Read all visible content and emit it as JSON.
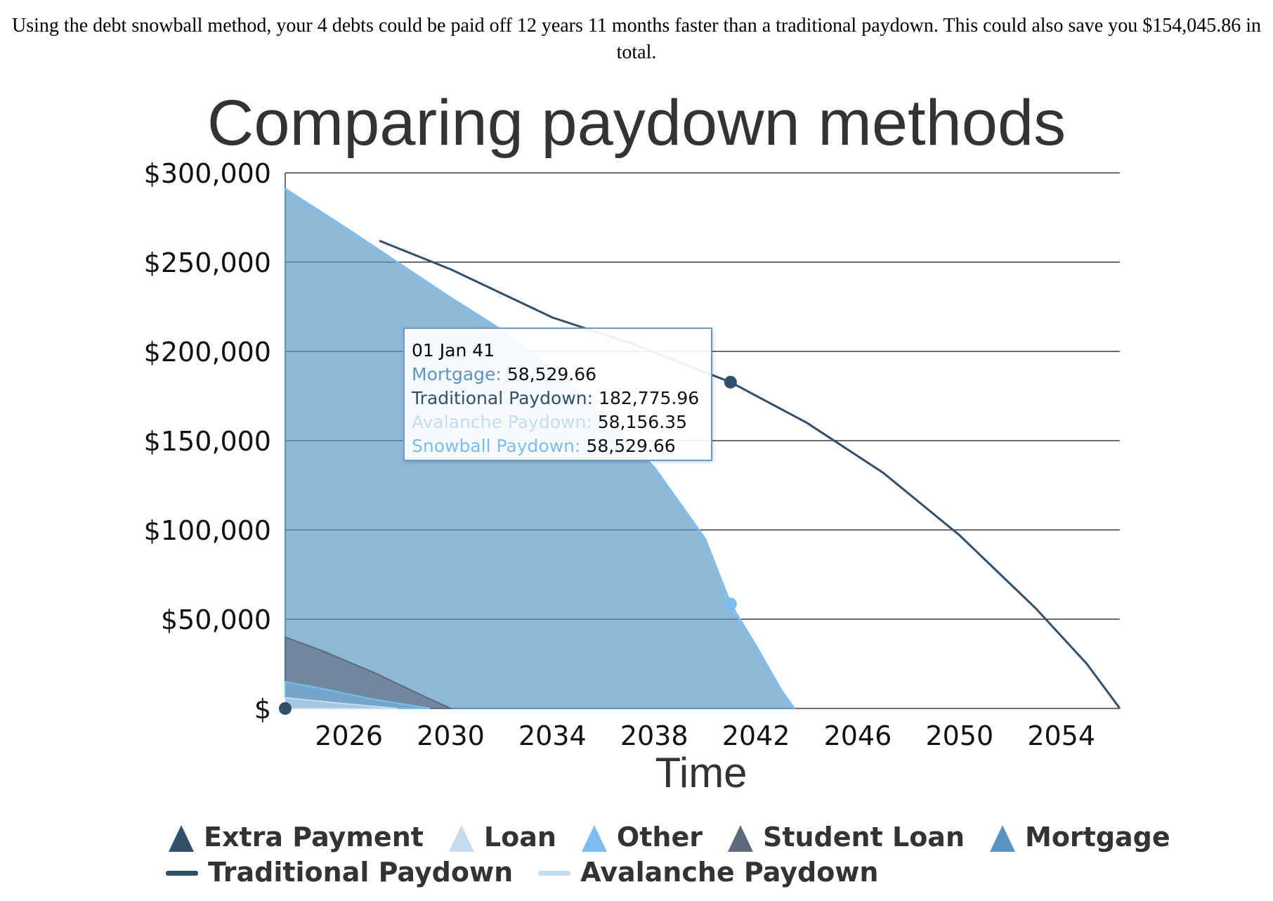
{
  "summary_text": "Using the debt snowball method, your 4 debts could be paid off 12 years 11 months faster than a traditional paydown. This could also save you $154,045.86 in total.",
  "chart_data": {
    "type": "area",
    "title": "Comparing paydown methods",
    "xlabel": "Time",
    "ylabel": "",
    "xlim": [
      2023.5,
      2056.3
    ],
    "ylim": [
      0,
      300000
    ],
    "x_ticks": [
      2026,
      2030,
      2034,
      2038,
      2042,
      2046,
      2050,
      2054
    ],
    "x_tick_labels": [
      "2026",
      "2030",
      "2034",
      "2038",
      "2042",
      "2046",
      "2050",
      "2054"
    ],
    "y_ticks": [
      0,
      50000,
      100000,
      150000,
      200000,
      250000,
      300000
    ],
    "y_tick_labels": [
      "$",
      "$50,000",
      "$100,000",
      "$150,000",
      "$200,000",
      "$250,000",
      "$300,000"
    ],
    "grid": true,
    "legend_position": "bottom",
    "series": [
      {
        "name": "Extra Payment",
        "kind": "area",
        "color": "#2f4f6b",
        "x": [
          2023.5
        ],
        "y": [
          0
        ]
      },
      {
        "name": "Loan",
        "kind": "area",
        "color": "#c5dcf0",
        "x": [
          2023.5,
          2026,
          2027.9
        ],
        "y": [
          6000,
          2400,
          0
        ]
      },
      {
        "name": "Other",
        "kind": "area",
        "color": "#7abdf0",
        "x": [
          2023.5,
          2025,
          2027,
          2029.2
        ],
        "y": [
          15000,
          11000,
          5000,
          0
        ]
      },
      {
        "name": "Student Loan",
        "kind": "area",
        "color": "#5c6b7a",
        "x": [
          2023.5,
          2025,
          2027,
          2029,
          2030
        ],
        "y": [
          40000,
          32000,
          20000,
          6500,
          0
        ]
      },
      {
        "name": "Mortgage",
        "kind": "area",
        "color": "#5a95c2",
        "x": [
          2023.5,
          2026,
          2028,
          2030,
          2032,
          2034,
          2036,
          2038,
          2040,
          2041,
          2042,
          2043,
          2043.5
        ],
        "y": [
          291000,
          268000,
          249000,
          230000,
          212000,
          190000,
          165000,
          135000,
          95000,
          58529.66,
          35000,
          10000,
          0
        ]
      },
      {
        "name": "Traditional Paydown",
        "kind": "line",
        "color": "#2f4f6b",
        "x": [
          2027.2,
          2030,
          2034,
          2037,
          2041,
          2044,
          2047,
          2050,
          2053,
          2055,
          2056.3
        ],
        "y": [
          262000,
          246000,
          219000,
          205000,
          182775.96,
          160000,
          132000,
          97000,
          56000,
          25000,
          0
        ]
      },
      {
        "name": "Avalanche Paydown",
        "kind": "line",
        "color": "#c5dcf0",
        "x": [
          2023.5,
          2026,
          2028,
          2030,
          2032,
          2034,
          2036,
          2038,
          2040,
          2041,
          2042,
          2043,
          2043.5
        ],
        "y": [
          291000,
          268000,
          249000,
          230000,
          212000,
          190000,
          165000,
          135000,
          95000,
          58156.35,
          35000,
          10000,
          0
        ]
      },
      {
        "name": "Snowball Paydown",
        "kind": "line",
        "color": "#7abdf0",
        "x": [
          2023.5,
          2026,
          2028,
          2030,
          2032,
          2034,
          2036,
          2038,
          2040,
          2041,
          2042,
          2043,
          2043.5
        ],
        "y": [
          291000,
          268000,
          249000,
          230000,
          212000,
          190000,
          165000,
          135000,
          95000,
          58529.66,
          35000,
          10000,
          0
        ]
      }
    ],
    "hover_points": [
      {
        "series": "Traditional Paydown",
        "x": 2041,
        "y": 182775.96,
        "color": "#2f4f6b"
      },
      {
        "series": "Snowball Paydown",
        "x": 2041,
        "y": 58529.66,
        "color": "#7abdf0"
      },
      {
        "series": "Extra Payment",
        "x": 2023.5,
        "y": 0,
        "color": "#2f4f6b"
      }
    ],
    "tooltip": {
      "date": "01 Jan 41",
      "rows": [
        {
          "label": "Mortgage:",
          "value": "58,529.66",
          "color": "#5a95c2"
        },
        {
          "label": "Traditional Paydown:",
          "value": "182,775.96",
          "color": "#2f4f6b"
        },
        {
          "label": "Avalanche Paydown:",
          "value": "58,156.35",
          "color": "#c5dcf0"
        },
        {
          "label": "Snowball Paydown:",
          "value": "58,529.66",
          "color": "#7abdf0"
        }
      ]
    },
    "legend_rows": [
      [
        {
          "name": "Extra Payment",
          "symbol": "triangle",
          "color": "#2f4f6b"
        },
        {
          "name": "Loan",
          "symbol": "triangle",
          "color": "#c5dcf0"
        },
        {
          "name": "Other",
          "symbol": "triangle",
          "color": "#7abdf0"
        },
        {
          "name": "Student Loan",
          "symbol": "triangle",
          "color": "#5c6b7a"
        },
        {
          "name": "Mortgage",
          "symbol": "triangle",
          "color": "#5a95c2"
        }
      ],
      [
        {
          "name": "Traditional Paydown",
          "symbol": "line",
          "color": "#2f4f6b"
        },
        {
          "name": "Avalanche Paydown",
          "symbol": "line",
          "color": "#c5dcf0"
        }
      ]
    ]
  }
}
